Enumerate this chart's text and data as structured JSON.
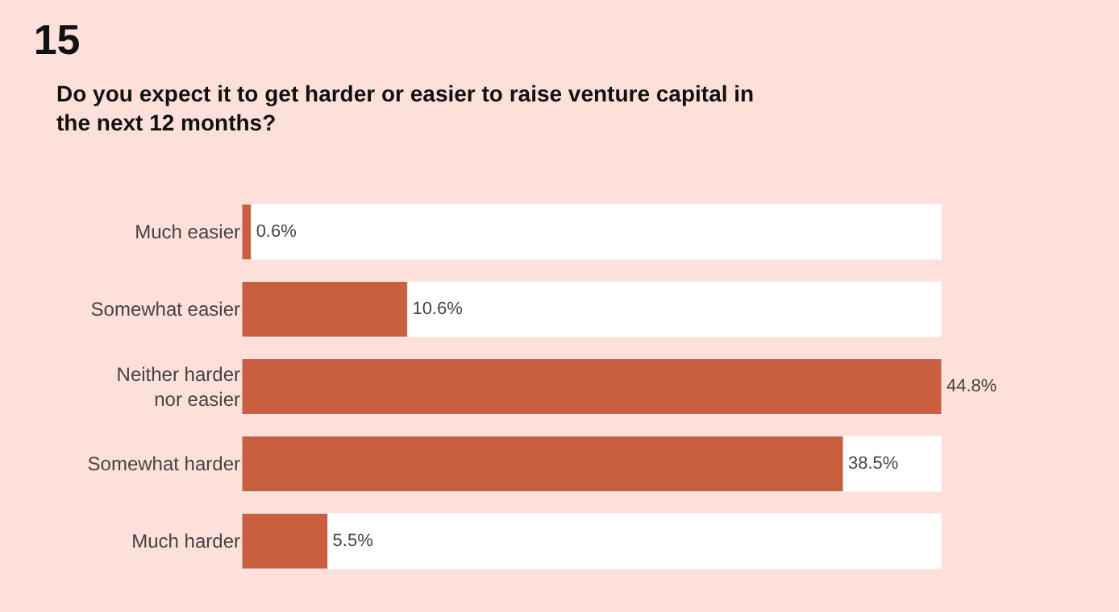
{
  "chart_data": {
    "type": "bar",
    "orientation": "horizontal",
    "title": "15",
    "subtitle": "Do you expect it to get harder or easier to raise venture capital in the next 12 months?",
    "categories": [
      "Much easier",
      "Somewhat easier",
      "Neither harder nor easier",
      "Somewhat harder",
      "Much harder"
    ],
    "values": [
      0.6,
      10.6,
      44.8,
      38.5,
      5.5
    ],
    "value_labels": [
      "0.6%",
      "10.6%",
      "44.8%",
      "38.5%",
      "5.5%"
    ],
    "color": "#c95f3f",
    "tick_labels": "y",
    "grid": false,
    "legend": false
  }
}
